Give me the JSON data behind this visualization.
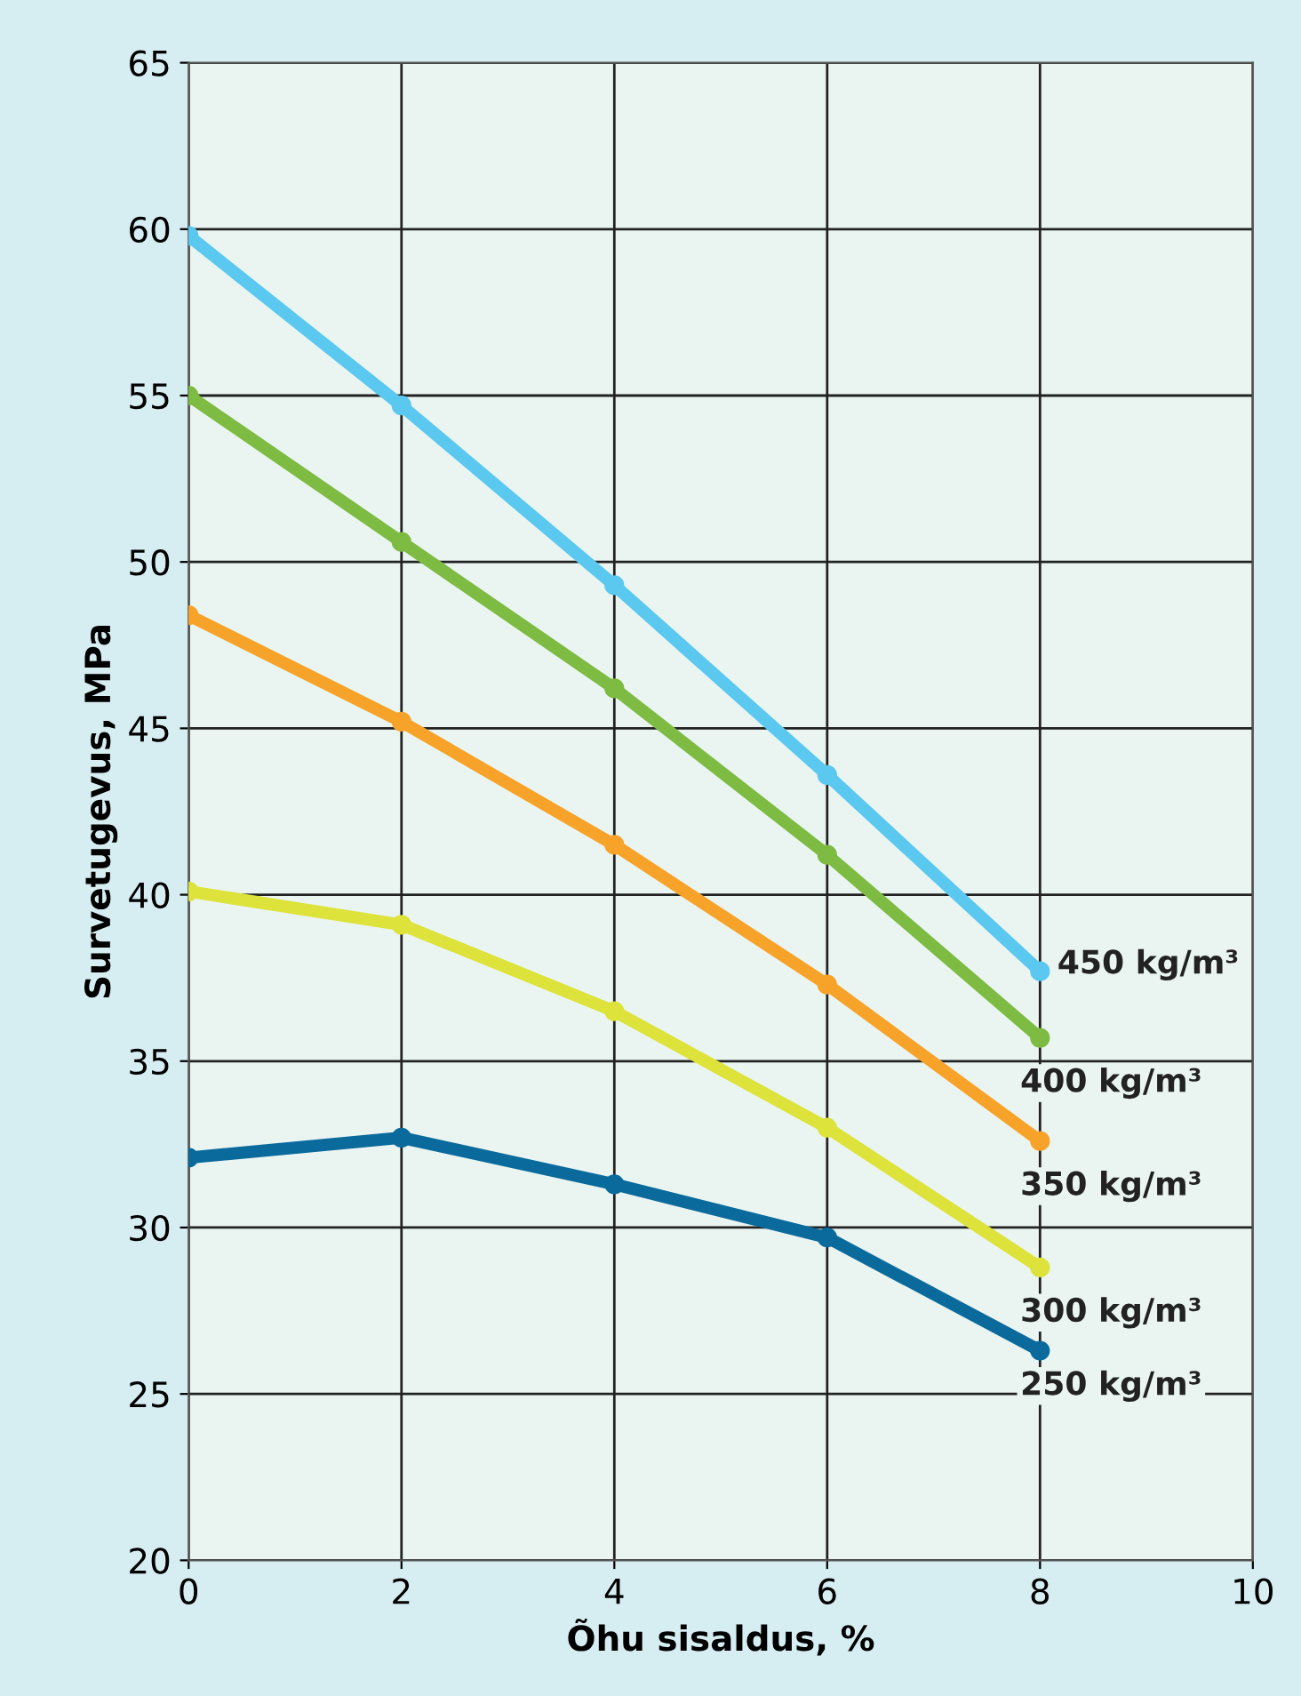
{
  "chart_data": {
    "type": "line",
    "xlabel": "Õhu sisaldus, %",
    "ylabel": "Survetugevus, MPa",
    "x": [
      0,
      2,
      4,
      6,
      8
    ],
    "series": [
      {
        "name": "450 kg/m³",
        "color": "#5bc8f0",
        "values": [
          59.8,
          54.7,
          49.3,
          43.6,
          37.7
        ]
      },
      {
        "name": "400 kg/m³",
        "color": "#7dbb42",
        "values": [
          55.0,
          50.6,
          46.2,
          41.2,
          35.7
        ]
      },
      {
        "name": "350 kg/m³",
        "color": "#f7a32a",
        "values": [
          48.4,
          45.2,
          41.5,
          37.3,
          32.6
        ]
      },
      {
        "name": "300 kg/m³",
        "color": "#dde33a",
        "values": [
          40.1,
          39.1,
          36.5,
          33.0,
          28.8
        ]
      },
      {
        "name": "250 kg/m³",
        "color": "#0a6a9c",
        "values": [
          32.1,
          32.7,
          31.3,
          29.7,
          26.3
        ]
      }
    ],
    "xlim": [
      0,
      10
    ],
    "xticks": [
      0,
      2,
      4,
      6,
      8,
      10
    ],
    "ylim": [
      20,
      65
    ],
    "yticks": [
      20,
      25,
      30,
      35,
      40,
      45,
      50,
      55,
      60,
      65
    ],
    "grid": true,
    "legend": false,
    "marker": "circle",
    "line_style": "solid"
  }
}
